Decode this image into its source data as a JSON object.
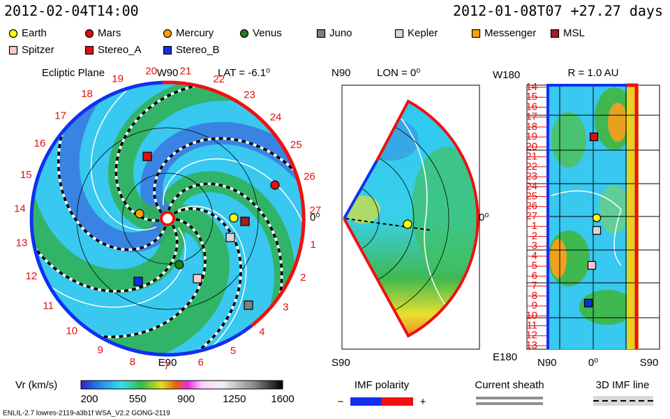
{
  "header": {
    "timestamp": "2012-02-04T14:00",
    "run": "2012-01-08T07 +27.27 days"
  },
  "legend": [
    {
      "name": "Earth",
      "color": "#ffff00",
      "shape": "circle"
    },
    {
      "name": "Mars",
      "color": "#e01010",
      "shape": "circle"
    },
    {
      "name": "Mercury",
      "color": "#ffa000",
      "shape": "circle"
    },
    {
      "name": "Venus",
      "color": "#208020",
      "shape": "circle"
    },
    {
      "name": "Juno",
      "color": "#808080",
      "shape": "square"
    },
    {
      "name": "Kepler",
      "color": "#d8d8d8",
      "shape": "square"
    },
    {
      "name": "Messenger",
      "color": "#ffa000",
      "shape": "square"
    },
    {
      "name": "MSL",
      "color": "#a02020",
      "shape": "square"
    },
    {
      "name": "Spitzer",
      "color": "#ffc8c8",
      "shape": "square"
    },
    {
      "name": "Stereo_A",
      "color": "#e01010",
      "shape": "square"
    },
    {
      "name": "Stereo_B",
      "color": "#1030e0",
      "shape": "square"
    }
  ],
  "ecliptic": {
    "title": "Ecliptic Plane",
    "top": "W90",
    "lat": "LAT = -6.1⁰",
    "bottom": "E90",
    "zero": "0⁰",
    "longitudes": [
      "1",
      "2",
      "3",
      "4",
      "5",
      "6",
      "7",
      "8",
      "9",
      "10",
      "11",
      "12",
      "13",
      "14",
      "15",
      "16",
      "17",
      "18",
      "19",
      "20",
      "21",
      "22",
      "23",
      "24",
      "25",
      "26",
      "27"
    ]
  },
  "meridional": {
    "top": "N90",
    "lon": "LON = 0⁰",
    "zero": "0⁰",
    "bottom": "S90"
  },
  "radial": {
    "title": "R = 1.0 AU",
    "top": "W180",
    "bottom": "E180",
    "left": "N90",
    "center": "0⁰",
    "right": "S90",
    "rows": [
      "14",
      "15",
      "16",
      "17",
      "18",
      "19",
      "20",
      "21",
      "22",
      "23",
      "24",
      "25",
      "26",
      "27",
      "1",
      "2",
      "3",
      "4",
      "5",
      "6",
      "7",
      "8",
      "9",
      "10",
      "11",
      "12",
      "13"
    ]
  },
  "colorbar": {
    "label": "Vr (km/s)",
    "ticks": [
      "200",
      "550",
      "900",
      "1250",
      "1600"
    ]
  },
  "imf": {
    "label": "IMF polarity",
    "minus": "−",
    "plus": "+"
  },
  "sheath": "Current sheath",
  "imf_line": "3D IMF line",
  "footer": "ENLIL-2.7 lowres-2119-a3b1f WSA_V2.2 GONG-2119"
}
